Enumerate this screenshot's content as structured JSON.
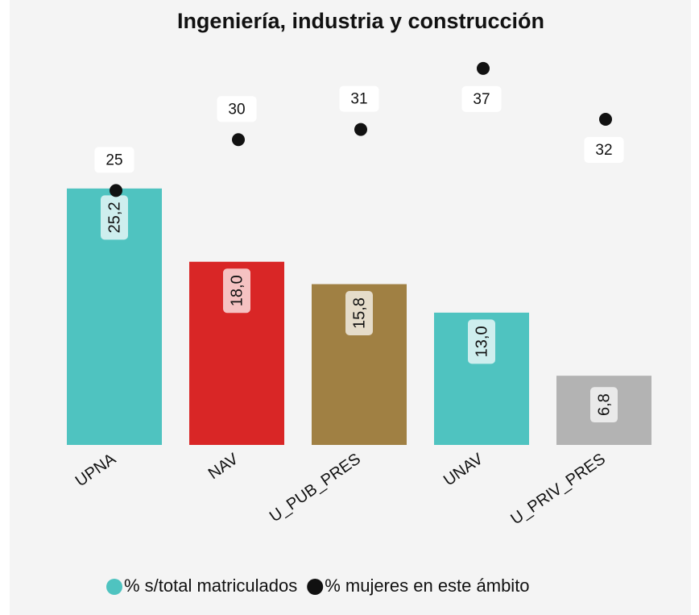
{
  "chart_data": {
    "type": "bar",
    "title": "Ingeniería, industria y construcción",
    "categories": [
      "UPNA",
      "NAV",
      "U_PUB_PRES",
      "UNAV",
      "U_PRIV_PRES"
    ],
    "series": [
      {
        "name": "% s/total matriculados",
        "type": "bar",
        "color": "#4fc3c0",
        "colors": [
          "#4fc3c0",
          "#d92626",
          "#a08043",
          "#4fc3c0",
          "#b3b3b3"
        ],
        "values": [
          25.2,
          18.0,
          15.8,
          13.0,
          6.8
        ],
        "value_labels": [
          "25,2",
          "18,0",
          "15,8",
          "13,0",
          "6,8"
        ]
      },
      {
        "name": "% mujeres en este ámbito",
        "type": "scatter",
        "color": "#111111",
        "axis": "y2",
        "values": [
          25,
          30,
          31,
          37,
          32
        ]
      }
    ],
    "ylim": [
      0,
      40
    ],
    "y2lim": [
      0,
      40
    ],
    "legend": "bottom"
  }
}
